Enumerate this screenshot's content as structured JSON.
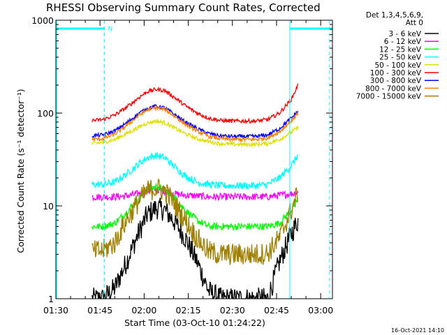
{
  "figure": {
    "footer_timestamp": "16-Oct-2021 14:10"
  },
  "chart_data": {
    "type": "line",
    "title": "RHESSI Observing Summary Count Rates, Corrected",
    "xlabel": "Start Time (03-Oct-10 01:24:22)",
    "ylabel": "Corrected Count Rate (s⁻¹ detector⁻¹)",
    "yscale": "log",
    "x_range_minutes": [
      90,
      184
    ],
    "ylim": [
      1,
      1000
    ],
    "x_ticks": [
      {
        "value": 90,
        "label": "01:30"
      },
      {
        "value": 105,
        "label": "01:45"
      },
      {
        "value": 120,
        "label": "02:00"
      },
      {
        "value": 135,
        "label": "02:15"
      },
      {
        "value": 150,
        "label": "02:30"
      },
      {
        "value": 165,
        "label": "02:45"
      },
      {
        "value": 180,
        "label": "03:00"
      }
    ],
    "y_ticks": [
      {
        "value": 1,
        "label": "1"
      },
      {
        "value": 10,
        "label": "10"
      },
      {
        "value": 100,
        "label": "100"
      },
      {
        "value": 1000,
        "label": "1000"
      }
    ],
    "legend": {
      "position": "top-right, outside plot",
      "header": [
        "Det 1,3,4,5,6,9,",
        "Att 0"
      ]
    },
    "data_window_minutes": [
      102.3,
      172.3
    ],
    "annotations": {
      "night_marker_label": "N",
      "top_bar_segments": [
        [
          90,
          106.5
        ],
        [
          169.5,
          184
        ]
      ],
      "vertical_dashed_lines": [
        106.5,
        183
      ],
      "vertical_solid_lines": [
        90.3,
        169.5
      ],
      "color": "#00ffff"
    },
    "series": [
      {
        "name": "3 - 6 keV",
        "color": "#000000",
        "x": [
          102.3,
          106,
          110,
          114,
          118,
          121,
          124,
          127,
          130,
          134,
          138,
          142,
          146,
          150,
          154,
          158,
          162,
          166,
          170,
          172.3
        ],
        "y": [
          1.0,
          1.0,
          1.3,
          2.5,
          5,
          8,
          9.5,
          9,
          7,
          4.5,
          2.5,
          1.2,
          1.0,
          1.0,
          1.0,
          1.0,
          1.0,
          2.5,
          5,
          7
        ]
      },
      {
        "name": "6 - 12 keV",
        "color": "#ff00ff",
        "x": [
          102.3,
          106,
          110,
          114,
          118,
          121,
          124,
          127,
          130,
          134,
          138,
          142,
          146,
          150,
          154,
          158,
          162,
          166,
          170,
          172.3
        ],
        "y": [
          12.5,
          12.5,
          12.5,
          12.8,
          13.5,
          14.5,
          15,
          14.5,
          13.5,
          13,
          12.8,
          12.5,
          12.5,
          12.5,
          12.5,
          12.5,
          12.5,
          13,
          13.5,
          14
        ]
      },
      {
        "name": "12 - 25 keV",
        "color": "#00ff00",
        "x": [
          102.3,
          106,
          110,
          114,
          118,
          121,
          124,
          127,
          130,
          134,
          138,
          142,
          146,
          150,
          154,
          158,
          162,
          166,
          170,
          172.3
        ],
        "y": [
          6,
          6,
          6.5,
          8.5,
          12,
          15,
          16,
          15,
          12.5,
          9,
          7,
          6,
          6,
          6,
          6,
          6,
          6,
          6.5,
          9,
          12
        ]
      },
      {
        "name": "25 - 50 keV",
        "color": "#00ffff",
        "x": [
          102.3,
          106,
          110,
          114,
          118,
          121,
          124,
          127,
          130,
          134,
          138,
          142,
          146,
          150,
          154,
          158,
          162,
          166,
          170,
          172.3
        ],
        "y": [
          17,
          17,
          18,
          22,
          28,
          33,
          35,
          33,
          27,
          21,
          18,
          17,
          16.5,
          16.5,
          16.5,
          16.5,
          17,
          20,
          27,
          35
        ]
      },
      {
        "name": "50 - 100 keV",
        "color": "#e0e000",
        "x": [
          102.3,
          106,
          110,
          114,
          118,
          121,
          124,
          127,
          130,
          134,
          138,
          142,
          146,
          150,
          154,
          158,
          162,
          166,
          170,
          172.3
        ],
        "y": [
          47,
          48,
          52,
          60,
          70,
          78,
          82,
          79,
          70,
          60,
          53,
          49,
          47,
          46,
          46,
          46,
          47,
          52,
          62,
          70
        ]
      },
      {
        "name": "100 - 300 keV",
        "color": "#ff0000",
        "x": [
          102.3,
          106,
          110,
          114,
          118,
          121,
          124,
          127,
          130,
          134,
          138,
          142,
          146,
          150,
          154,
          158,
          162,
          166,
          170,
          172.3
        ],
        "y": [
          83,
          85,
          95,
          115,
          145,
          170,
          180,
          175,
          150,
          120,
          100,
          88,
          83,
          82,
          82,
          82,
          85,
          100,
          140,
          200
        ]
      },
      {
        "name": "300 - 800 keV",
        "color": "#0000ff",
        "x": [
          102.3,
          106,
          110,
          114,
          118,
          121,
          124,
          127,
          130,
          134,
          138,
          142,
          146,
          150,
          154,
          158,
          162,
          166,
          170,
          172.3
        ],
        "y": [
          57,
          58,
          64,
          78,
          98,
          112,
          118,
          114,
          98,
          80,
          68,
          60,
          57,
          56,
          56,
          56,
          58,
          68,
          88,
          105
        ]
      },
      {
        "name": "800 - 7000 keV",
        "color": "#ff8000",
        "x": [
          102.3,
          106,
          110,
          114,
          118,
          121,
          124,
          127,
          130,
          134,
          138,
          142,
          146,
          150,
          154,
          158,
          162,
          166,
          170,
          172.3
        ],
        "y": [
          52,
          53,
          59,
          73,
          93,
          108,
          115,
          110,
          94,
          76,
          64,
          56,
          53,
          52,
          52,
          52,
          54,
          63,
          82,
          100
        ]
      },
      {
        "name": "7000 - 15000 keV",
        "color": "#a08000",
        "x": [
          102.3,
          106,
          110,
          114,
          118,
          121,
          124,
          127,
          130,
          134,
          138,
          142,
          146,
          150,
          154,
          158,
          162,
          166,
          170,
          172.3
        ],
        "y": [
          3.2,
          3.3,
          4,
          7,
          11,
          14.5,
          15.5,
          14.5,
          11,
          7,
          4.5,
          3.2,
          3.0,
          3.0,
          3.0,
          3.0,
          3.1,
          4.5,
          9,
          14
        ]
      }
    ]
  }
}
